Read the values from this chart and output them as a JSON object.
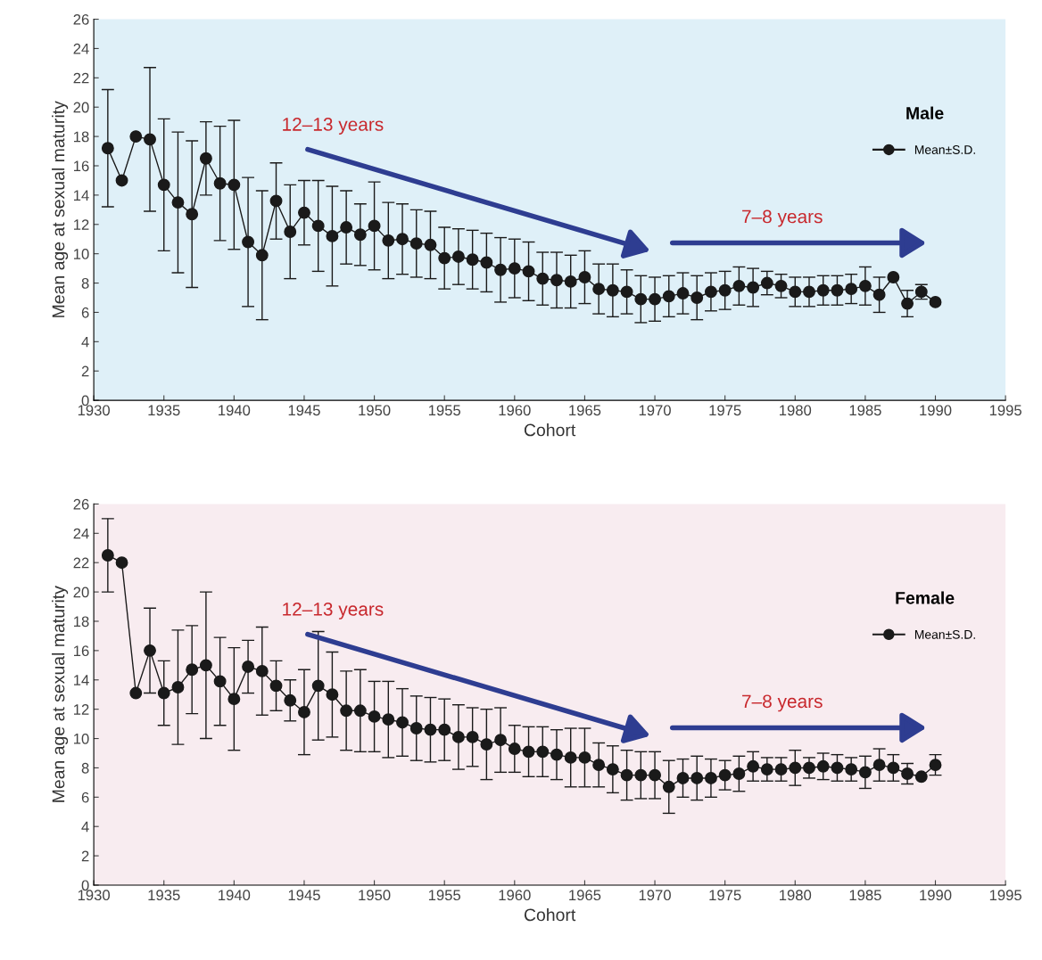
{
  "chart_data": [
    {
      "type": "line",
      "legend_title": "Male",
      "xlabel": "Cohort",
      "ylabel": "Mean age at sexual maturity",
      "xlim": [
        1930,
        1995
      ],
      "xticks": [
        1930,
        1935,
        1940,
        1945,
        1950,
        1955,
        1960,
        1965,
        1970,
        1975,
        1980,
        1985,
        1990,
        1995
      ],
      "ylim": [
        0,
        26
      ],
      "yticks": [
        0,
        2,
        4,
        6,
        8,
        10,
        12,
        14,
        16,
        18,
        20,
        22,
        24,
        26
      ],
      "marker": "circle",
      "line_style": "solid",
      "legend": "top right",
      "grid": false,
      "annotations": [
        "12–13 years",
        "7–8 years"
      ],
      "x": [
        1931,
        1932,
        1933,
        1934,
        1935,
        1936,
        1937,
        1938,
        1939,
        1940,
        1941,
        1942,
        1943,
        1944,
        1945,
        1946,
        1947,
        1948,
        1949,
        1950,
        1951,
        1952,
        1953,
        1954,
        1955,
        1956,
        1957,
        1958,
        1959,
        1960,
        1961,
        1962,
        1963,
        1964,
        1965,
        1966,
        1967,
        1968,
        1969,
        1970,
        1971,
        1972,
        1973,
        1974,
        1975,
        1976,
        1977,
        1978,
        1979,
        1980,
        1981,
        1982,
        1983,
        1984,
        1985,
        1986,
        1987,
        1988,
        1989,
        1990
      ],
      "series": [
        {
          "name": "Mean±S.D.",
          "color": "#1a1a1a",
          "values": [
            17.2,
            15.0,
            18.0,
            17.8,
            14.7,
            13.5,
            12.7,
            16.5,
            14.8,
            14.7,
            10.8,
            9.9,
            13.6,
            11.5,
            12.8,
            11.9,
            11.2,
            11.8,
            11.3,
            11.9,
            10.9,
            11.0,
            10.7,
            10.6,
            9.7,
            9.8,
            9.6,
            9.4,
            8.9,
            9.0,
            8.8,
            8.3,
            8.2,
            8.1,
            8.4,
            7.6,
            7.5,
            7.4,
            6.9,
            6.9,
            7.1,
            7.3,
            7.0,
            7.4,
            7.5,
            7.8,
            7.7,
            8.0,
            7.8,
            7.4,
            7.4,
            7.5,
            7.5,
            7.6,
            7.8,
            7.2,
            8.4,
            6.6,
            7.4,
            6.7
          ],
          "errors": [
            4.0,
            null,
            null,
            4.9,
            4.5,
            4.8,
            5.0,
            2.5,
            3.9,
            4.4,
            4.4,
            4.4,
            2.6,
            3.2,
            2.2,
            3.1,
            3.4,
            2.5,
            2.1,
            3.0,
            2.6,
            2.4,
            2.3,
            2.3,
            2.1,
            1.9,
            2.0,
            2.0,
            2.2,
            2.0,
            2.0,
            1.8,
            1.9,
            1.8,
            1.8,
            1.7,
            1.8,
            1.5,
            1.6,
            1.5,
            1.4,
            1.4,
            1.5,
            1.3,
            1.3,
            1.3,
            1.3,
            0.8,
            0.8,
            1.0,
            1.0,
            1.0,
            1.0,
            1.0,
            1.3,
            1.2,
            null,
            0.9,
            0.5,
            null
          ]
        }
      ]
    },
    {
      "type": "line",
      "legend_title": "Female",
      "xlabel": "Cohort",
      "ylabel": "Mean age at sexual maturity",
      "xlim": [
        1930,
        1995
      ],
      "xticks": [
        1930,
        1935,
        1940,
        1945,
        1950,
        1955,
        1960,
        1965,
        1970,
        1975,
        1980,
        1985,
        1990,
        1995
      ],
      "ylim": [
        0,
        26
      ],
      "yticks": [
        0,
        2,
        4,
        6,
        8,
        10,
        12,
        14,
        16,
        18,
        20,
        22,
        24,
        26
      ],
      "marker": "circle",
      "line_style": "solid",
      "legend": "top right",
      "grid": false,
      "annotations": [
        "12–13 years",
        "7–8 years"
      ],
      "x": [
        1931,
        1932,
        1933,
        1934,
        1935,
        1936,
        1937,
        1938,
        1939,
        1940,
        1941,
        1942,
        1943,
        1944,
        1945,
        1946,
        1947,
        1948,
        1949,
        1950,
        1951,
        1952,
        1953,
        1954,
        1955,
        1956,
        1957,
        1958,
        1959,
        1960,
        1961,
        1962,
        1963,
        1964,
        1965,
        1966,
        1967,
        1968,
        1969,
        1970,
        1971,
        1972,
        1973,
        1974,
        1975,
        1976,
        1977,
        1978,
        1979,
        1980,
        1981,
        1982,
        1983,
        1984,
        1985,
        1986,
        1987,
        1988,
        1989,
        1990
      ],
      "series": [
        {
          "name": "Mean±S.D.",
          "color": "#1a1a1a",
          "values": [
            22.5,
            22.0,
            13.1,
            16.0,
            13.1,
            13.5,
            14.7,
            15.0,
            13.9,
            12.7,
            14.9,
            14.6,
            13.6,
            12.6,
            11.8,
            13.6,
            13.0,
            11.9,
            11.9,
            11.5,
            11.3,
            11.1,
            10.7,
            10.6,
            10.6,
            10.1,
            10.1,
            9.6,
            9.9,
            9.3,
            9.1,
            9.1,
            8.9,
            8.7,
            8.7,
            8.2,
            7.9,
            7.5,
            7.5,
            7.5,
            6.7,
            7.3,
            7.3,
            7.3,
            7.5,
            7.6,
            8.1,
            7.9,
            7.9,
            8.0,
            8.0,
            8.1,
            8.0,
            7.9,
            7.7,
            8.2,
            8.0,
            7.6,
            7.4,
            8.2
          ],
          "errors": [
            2.5,
            null,
            null,
            2.9,
            2.2,
            3.9,
            3.0,
            5.0,
            3.0,
            3.5,
            1.8,
            3.0,
            1.7,
            1.4,
            2.9,
            3.7,
            2.9,
            2.7,
            2.8,
            2.4,
            2.6,
            2.3,
            2.2,
            2.2,
            2.1,
            2.2,
            2.0,
            2.4,
            2.2,
            1.6,
            1.7,
            1.7,
            1.7,
            2.0,
            2.0,
            1.5,
            1.6,
            1.7,
            1.6,
            1.6,
            1.8,
            1.3,
            1.5,
            1.3,
            1.0,
            1.2,
            1.0,
            0.8,
            0.8,
            1.2,
            0.7,
            0.9,
            0.9,
            0.8,
            1.1,
            1.1,
            0.9,
            0.7,
            null,
            0.7
          ]
        }
      ]
    }
  ]
}
